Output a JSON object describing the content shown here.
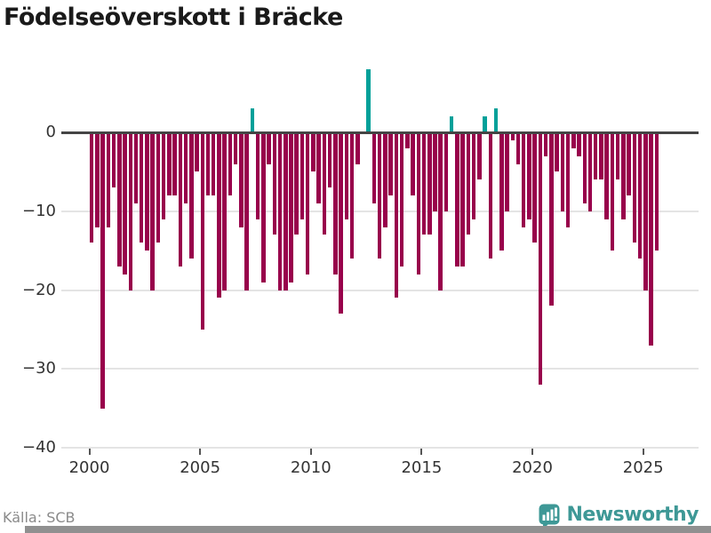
{
  "title": "Födelseöverskott i Bräcke",
  "footer": {
    "source": "Källa: SCB",
    "brand": "Newsworthy"
  },
  "colors": {
    "negative_bar": "#98004B",
    "positive_bar": "#00A099",
    "zero_line": "#454545",
    "gridline": "#E4E4E4",
    "axis_text": "#333333",
    "title_text": "#1A1A1A",
    "source_text": "#8A8A8A",
    "brand_teal": "#3E9896",
    "bottom_strip": "#909090"
  },
  "chart_data": {
    "type": "bar",
    "title": "Födelseöverskott i Bräcke",
    "frequency": "quarterly",
    "start": "2000-Q1",
    "end": "2025-Q3",
    "xlabel": "",
    "ylabel": "",
    "ylim": [
      -40,
      10
    ],
    "grid": "horizontal",
    "legend": "none",
    "x_tick_labels": [
      "2000",
      "2005",
      "2010",
      "2015",
      "2020",
      "2025"
    ],
    "x_ticks": [
      2000,
      2005,
      2010,
      2015,
      2020,
      2025
    ],
    "y_tick_labels": [
      "0",
      "−10",
      "−20",
      "−30",
      "−40"
    ],
    "y_ticks": [
      0,
      -10,
      -20,
      -30,
      -40
    ],
    "series": [
      {
        "name": "Födelseöverskott",
        "values": [
          -14,
          -12,
          -35,
          -12,
          -7,
          -17,
          -18,
          -20,
          -9,
          -14,
          -15,
          -20,
          -14,
          -11,
          -8,
          -8,
          -17,
          -9,
          -16,
          -5,
          -25,
          -8,
          -8,
          -21,
          -20,
          -8,
          -4,
          -12,
          -20,
          3,
          -11,
          -19,
          -4,
          -13,
          -20,
          -20,
          -19,
          -13,
          -11,
          -18,
          -5,
          -9,
          -13,
          -7,
          -18,
          -23,
          -11,
          -16,
          -4,
          0,
          8,
          -9,
          -16,
          -12,
          -8,
          -21,
          -17,
          -2,
          -8,
          -18,
          -13,
          -13,
          -10,
          -20,
          -10,
          2,
          -17,
          -17,
          -13,
          -11,
          -6,
          2,
          -16,
          3,
          -15,
          -10,
          -1,
          -4,
          -12,
          -11,
          -14,
          -32,
          -3,
          -22,
          -5,
          -10,
          -12,
          -2,
          -3,
          -9,
          -10,
          -6,
          -6,
          -11,
          -15,
          -6,
          -11,
          -8,
          -14,
          -16,
          -20,
          -27,
          -15
        ]
      }
    ]
  }
}
